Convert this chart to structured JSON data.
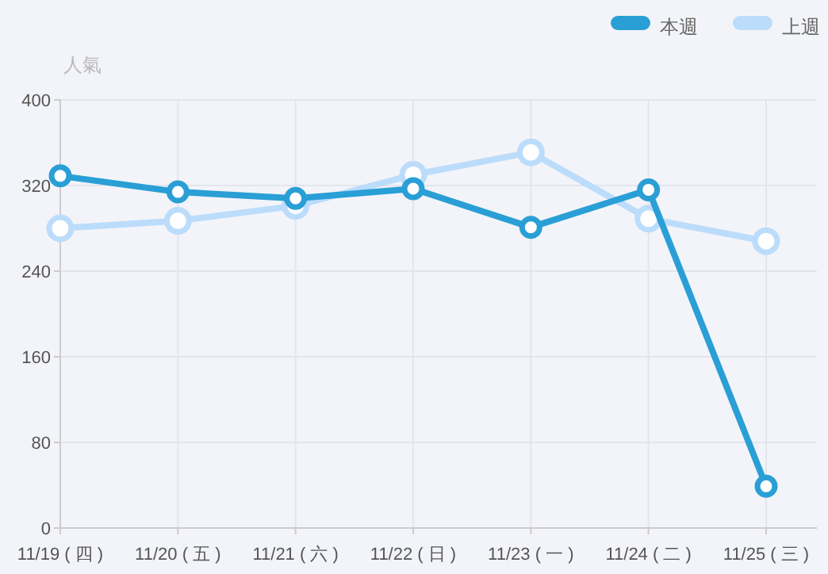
{
  "chart_data": {
    "type": "line",
    "ylabel": "人氣",
    "categories": [
      "11/19 ( 四 )",
      "11/20 ( 五 )",
      "11/21 ( 六 )",
      "11/22 ( 日 )",
      "11/23 ( 一 )",
      "11/24 ( 二 )",
      "11/25 ( 三 )"
    ],
    "series": [
      {
        "name": "本週",
        "color": "#2a9fd6",
        "values": [
          329,
          314,
          308,
          317,
          281,
          316,
          39
        ]
      },
      {
        "name": "上週",
        "color": "#bcdcfb",
        "values": [
          280,
          287,
          301,
          330,
          351,
          289,
          268
        ]
      }
    ],
    "ylim": [
      0,
      400
    ],
    "yticks": [
      0,
      80,
      160,
      240,
      320,
      400
    ],
    "grid": true,
    "legend": "top right",
    "marker": "circle",
    "line_style": "solid"
  }
}
